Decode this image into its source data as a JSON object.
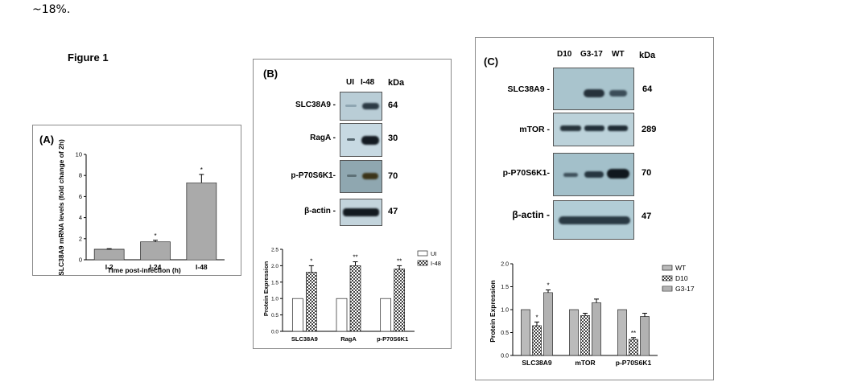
{
  "page": {
    "top_text": "~18%.",
    "figure_title": "Figure 1"
  },
  "panel_a": {
    "label": "(A)",
    "chart_data": {
      "type": "bar",
      "categories": [
        "I-2",
        "I-24",
        "I-48"
      ],
      "values": [
        1.0,
        1.7,
        7.3
      ],
      "errors": [
        0.05,
        0.15,
        0.8
      ],
      "significance": [
        "",
        "*",
        "*"
      ],
      "ylabel": "SLC38A9 mRNA levels (fold change of 2h)",
      "xlabel": "Time post-infection (h)",
      "ylim": [
        0,
        10
      ],
      "yticks": [
        0,
        2,
        4,
        6,
        8,
        10
      ]
    }
  },
  "panel_b": {
    "label": "(B)",
    "lanes": [
      "UI",
      "I-48"
    ],
    "kda_header": "kDa",
    "blots": [
      {
        "name": "SLC38A9 -",
        "kda": "64"
      },
      {
        "name": "RagA -",
        "kda": "30"
      },
      {
        "name": "p-P70S6K1-",
        "kda": "70"
      },
      {
        "name": "β-actin -",
        "kda": "47"
      }
    ],
    "chart_data": {
      "type": "bar",
      "categories": [
        "SLC38A9",
        "RagA",
        "p-P70S6K1"
      ],
      "series": [
        {
          "name": "UI",
          "values": [
            1.0,
            1.0,
            1.0
          ],
          "errors": [
            0,
            0,
            0
          ],
          "color": "#777777"
        },
        {
          "name": "I-48",
          "values": [
            1.8,
            2.0,
            1.9
          ],
          "errors": [
            0.2,
            0.12,
            0.1
          ],
          "color": "#cccccc"
        }
      ],
      "significance": [
        [
          "",
          "*"
        ],
        [
          "",
          "**"
        ],
        [
          "",
          "**"
        ]
      ],
      "ylabel": "Protein Expression",
      "ylim": [
        0,
        2.5
      ],
      "yticks": [
        "0.0",
        "0.5",
        "1.0",
        "1.5",
        "2.0",
        "2.5"
      ],
      "legend_position": "top-right"
    }
  },
  "panel_c": {
    "label": "(C)",
    "lanes": [
      "D10",
      "G3-17",
      "WT"
    ],
    "kda_header": "kDa",
    "blots": [
      {
        "name": "SLC38A9 -",
        "kda": "64"
      },
      {
        "name": "mTOR -",
        "kda": "289"
      },
      {
        "name": "p-P70S6K1-",
        "kda": "70"
      },
      {
        "name": "β-actin -",
        "kda": "47"
      }
    ],
    "chart_data": {
      "type": "bar",
      "categories": [
        "SLC38A9",
        "mTOR",
        "p-P70S6K1"
      ],
      "series": [
        {
          "name": "WT",
          "values": [
            1.0,
            1.0,
            1.0
          ],
          "errors": [
            0,
            0,
            0
          ],
          "color": "#777777"
        },
        {
          "name": "D10",
          "values": [
            0.65,
            0.87,
            0.35
          ],
          "errors": [
            0.08,
            0.05,
            0.04
          ],
          "color": "#cccccc"
        },
        {
          "name": "G3-17",
          "values": [
            1.37,
            1.15,
            0.85
          ],
          "errors": [
            0.06,
            0.08,
            0.07
          ],
          "color": "#eeeeee"
        }
      ],
      "significance": [
        [
          "",
          "*",
          "*"
        ],
        [
          "",
          "",
          ""
        ],
        [
          "",
          "**",
          ""
        ]
      ],
      "ylabel": "Protein Expression",
      "ylim": [
        0,
        2.0
      ],
      "yticks": [
        "0.0",
        "0.5",
        "1.0",
        "1.5",
        "2.0"
      ],
      "legend_position": "top-right"
    }
  }
}
